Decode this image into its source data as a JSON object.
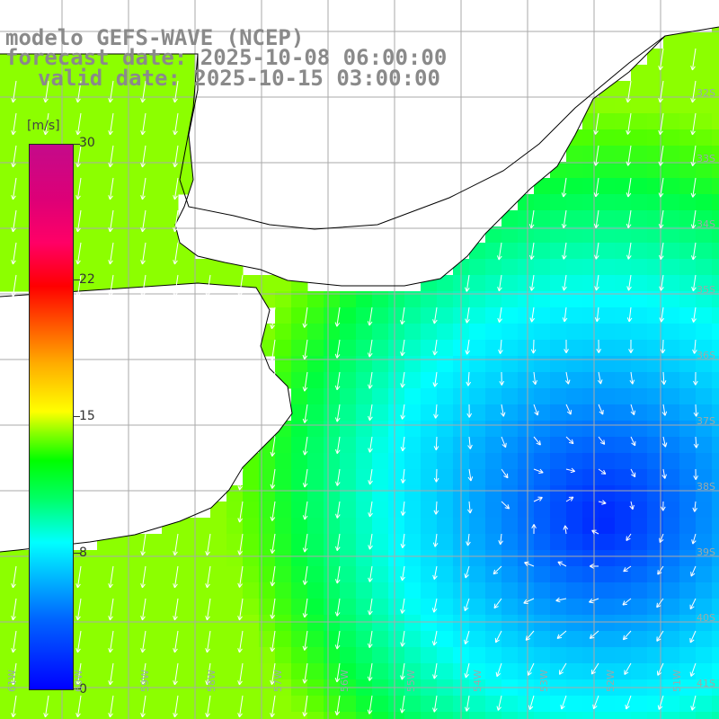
{
  "header": {
    "line1": "modelo GEFS-WAVE (NCEP)",
    "line2": "forecast date: 2025-10-08 06:00:00",
    "line3": "valid date: 2025-10-15 03:00:00"
  },
  "colorbar": {
    "unit": "[m/s]",
    "ticks": [
      "30",
      "22",
      "15",
      "8",
      "0"
    ],
    "tick_values": [
      30,
      22,
      15,
      8,
      0
    ],
    "range": [
      0,
      30
    ],
    "colors": [
      "#0000ff",
      "#00c8ff",
      "#00ffff",
      "#00ff00",
      "#ffff00",
      "#ff0000",
      "#c40a8a"
    ]
  },
  "map": {
    "ocean_field": "wind speed",
    "land_color": "#ffffff",
    "grid_color": "#aaaaaa",
    "coastline_color": "#000000",
    "arrow_color": "#ffffff",
    "lon_labels": [
      "61W",
      "60W",
      "59W",
      "58W",
      "57W",
      "56W",
      "55W",
      "54W",
      "53W",
      "52W",
      "51W"
    ],
    "lat_labels": [
      "32S",
      "33S",
      "34S",
      "35S",
      "36S",
      "37S",
      "38S",
      "39S",
      "40S",
      "41S"
    ],
    "min_center": "low wind center near 39S 52W"
  }
}
